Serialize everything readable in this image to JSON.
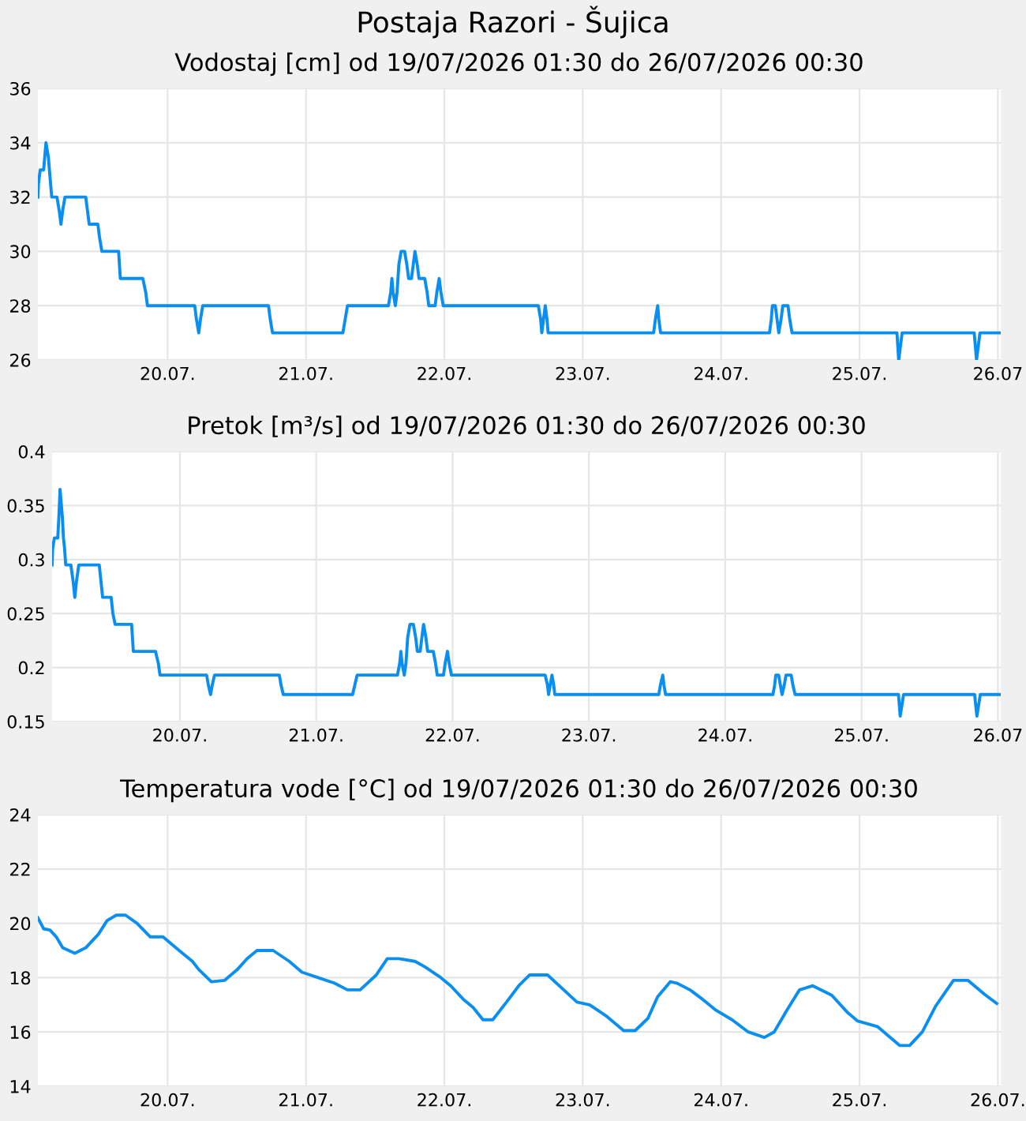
{
  "chart_data": [
    {
      "type": "line",
      "title": "Postaja Razori - Šujica",
      "subtitle": "Vodostaj [cm] od 19/07/2026 01:30 do 26/07/2026 00:30",
      "grid": true,
      "marker": "none",
      "line_style": "solid",
      "xlim": [
        "2026-07-19T01:30",
        "2026-07-26T00:30"
      ],
      "xticks": [
        {
          "value": "2026-07-20",
          "label": "20.07."
        },
        {
          "value": "2026-07-21",
          "label": "21.07."
        },
        {
          "value": "2026-07-22",
          "label": "22.07."
        },
        {
          "value": "2026-07-23",
          "label": "23.07."
        },
        {
          "value": "2026-07-24",
          "label": "24.07."
        },
        {
          "value": "2026-07-25",
          "label": "25.07."
        },
        {
          "value": "2026-07-26",
          "label": "26.07"
        }
      ],
      "ylim": [
        26,
        36
      ],
      "yticks": [
        26,
        28,
        30,
        32,
        34,
        36
      ],
      "series": [
        {
          "color": "#0a8ff0",
          "x": [
            "2026-07-19T01:30",
            "2026-07-19T01:36",
            "2026-07-19T01:54",
            "2026-07-19T02:30",
            "2026-07-19T02:42",
            "2026-07-19T02:54",
            "2026-07-19T03:18",
            "2026-07-19T03:30",
            "2026-07-19T03:42",
            "2026-07-19T03:54",
            "2026-07-19T04:48",
            "2026-07-19T05:12",
            "2026-07-19T05:30",
            "2026-07-19T05:48",
            "2026-07-19T06:12",
            "2026-07-19T09:48",
            "2026-07-19T10:06",
            "2026-07-19T10:24",
            "2026-07-19T11:54",
            "2026-07-19T12:12",
            "2026-07-19T12:36",
            "2026-07-19T15:30",
            "2026-07-19T15:48",
            "2026-07-19T19:42",
            "2026-07-19T20:12",
            "2026-07-19T20:30",
            "2026-07-20T04:42",
            "2026-07-20T05:00",
            "2026-07-20T05:24",
            "2026-07-20T05:42",
            "2026-07-20T06:06",
            "2026-07-20T17:30",
            "2026-07-20T17:48",
            "2026-07-20T18:12",
            "2026-07-21T06:24",
            "2026-07-21T06:48",
            "2026-07-21T07:12",
            "2026-07-21T14:18",
            "2026-07-21T14:42",
            "2026-07-21T14:54",
            "2026-07-21T15:06",
            "2026-07-21T15:30",
            "2026-07-21T15:48",
            "2026-07-21T16:06",
            "2026-07-21T16:30",
            "2026-07-21T17:06",
            "2026-07-21T17:30",
            "2026-07-21T17:48",
            "2026-07-21T18:18",
            "2026-07-21T18:36",
            "2026-07-21T18:54",
            "2026-07-21T19:18",
            "2026-07-21T19:36",
            "2026-07-21T20:36",
            "2026-07-21T21:00",
            "2026-07-21T21:18",
            "2026-07-21T22:24",
            "2026-07-21T22:42",
            "2026-07-21T23:06",
            "2026-07-21T23:24",
            "2026-07-21T23:48",
            "2026-07-22T16:18",
            "2026-07-22T16:42",
            "2026-07-22T16:54",
            "2026-07-22T17:12",
            "2026-07-22T17:30",
            "2026-07-22T17:48",
            "2026-07-22T18:00",
            "2026-07-23T12:18",
            "2026-07-23T12:36",
            "2026-07-23T13:00",
            "2026-07-23T13:12",
            "2026-07-23T13:30",
            "2026-07-24T08:24",
            "2026-07-24T08:42",
            "2026-07-24T08:54",
            "2026-07-24T09:24",
            "2026-07-24T09:42",
            "2026-07-24T10:00",
            "2026-07-24T10:24",
            "2026-07-24T10:42",
            "2026-07-24T11:36",
            "2026-07-24T11:54",
            "2026-07-24T12:18",
            "2026-07-25T06:30",
            "2026-07-25T06:48",
            "2026-07-25T07:06",
            "2026-07-25T07:24",
            "2026-07-25T19:54",
            "2026-07-25T20:18",
            "2026-07-25T20:36",
            "2026-07-25T20:54",
            "2026-07-26T00:24"
          ],
          "values": [
            32,
            32.5,
            33,
            33,
            33.5,
            34,
            33.5,
            33,
            32.5,
            32,
            32,
            31.5,
            31,
            31.5,
            32,
            32,
            31.5,
            31,
            31,
            30.5,
            30,
            30,
            29,
            29,
            28.5,
            28,
            28,
            27.5,
            27,
            27.5,
            28,
            28,
            27.5,
            27,
            27,
            27.5,
            28,
            28,
            28.5,
            29,
            28.5,
            28,
            28.5,
            29.5,
            30,
            30,
            29.5,
            29,
            29,
            29.5,
            30,
            29.5,
            29,
            29,
            28.5,
            28,
            28,
            28.5,
            29,
            28.5,
            28,
            28,
            27.5,
            27,
            27.5,
            28,
            27.5,
            27,
            27,
            27.5,
            28,
            27.5,
            27,
            27,
            27.5,
            28,
            28,
            27.5,
            27,
            27.5,
            28,
            28,
            27.5,
            27,
            27,
            26,
            26.5,
            27,
            27,
            26,
            26.5,
            27,
            27
          ]
        }
      ]
    },
    {
      "type": "line",
      "title": "Pretok [m³/s] od 19/07/2026 01:30 do 26/07/2026 00:30",
      "grid": true,
      "marker": "none",
      "line_style": "solid",
      "xlim": [
        "2026-07-19T01:30",
        "2026-07-26T00:30"
      ],
      "xticks": [
        {
          "value": "2026-07-20",
          "label": "20.07."
        },
        {
          "value": "2026-07-21",
          "label": "21.07."
        },
        {
          "value": "2026-07-22",
          "label": "22.07."
        },
        {
          "value": "2026-07-23",
          "label": "23.07."
        },
        {
          "value": "2026-07-24",
          "label": "24.07."
        },
        {
          "value": "2026-07-25",
          "label": "25.07."
        },
        {
          "value": "2026-07-26",
          "label": "26.07"
        }
      ],
      "ylim": [
        0.15,
        0.4
      ],
      "yticks": [
        0.15,
        0.2,
        0.25,
        0.3,
        0.35,
        0.4
      ],
      "series": [
        {
          "color": "#0a8ff0",
          "x": [
            "2026-07-19T01:30",
            "2026-07-19T01:36",
            "2026-07-19T01:54",
            "2026-07-19T02:30",
            "2026-07-19T02:42",
            "2026-07-19T02:54",
            "2026-07-19T03:18",
            "2026-07-19T03:30",
            "2026-07-19T03:42",
            "2026-07-19T03:54",
            "2026-07-19T04:48",
            "2026-07-19T05:12",
            "2026-07-19T05:30",
            "2026-07-19T05:48",
            "2026-07-19T06:12",
            "2026-07-19T09:48",
            "2026-07-19T10:06",
            "2026-07-19T10:24",
            "2026-07-19T11:54",
            "2026-07-19T12:12",
            "2026-07-19T12:36",
            "2026-07-19T15:30",
            "2026-07-19T15:48",
            "2026-07-19T19:42",
            "2026-07-19T20:12",
            "2026-07-19T20:30",
            "2026-07-20T04:42",
            "2026-07-20T05:00",
            "2026-07-20T05:24",
            "2026-07-20T05:42",
            "2026-07-20T06:06",
            "2026-07-20T17:30",
            "2026-07-20T17:48",
            "2026-07-20T18:12",
            "2026-07-21T06:24",
            "2026-07-21T06:48",
            "2026-07-21T07:12",
            "2026-07-21T14:18",
            "2026-07-21T14:42",
            "2026-07-21T14:54",
            "2026-07-21T15:06",
            "2026-07-21T15:30",
            "2026-07-21T15:48",
            "2026-07-21T16:06",
            "2026-07-21T16:30",
            "2026-07-21T17:06",
            "2026-07-21T17:30",
            "2026-07-21T17:48",
            "2026-07-21T18:18",
            "2026-07-21T18:36",
            "2026-07-21T18:54",
            "2026-07-21T19:18",
            "2026-07-21T19:36",
            "2026-07-21T20:36",
            "2026-07-21T21:00",
            "2026-07-21T21:18",
            "2026-07-21T22:24",
            "2026-07-21T22:42",
            "2026-07-21T23:06",
            "2026-07-21T23:24",
            "2026-07-21T23:48",
            "2026-07-22T16:18",
            "2026-07-22T16:42",
            "2026-07-22T16:54",
            "2026-07-22T17:12",
            "2026-07-22T17:30",
            "2026-07-22T17:48",
            "2026-07-22T18:00",
            "2026-07-23T12:18",
            "2026-07-23T12:36",
            "2026-07-23T13:00",
            "2026-07-23T13:12",
            "2026-07-23T13:30",
            "2026-07-24T08:24",
            "2026-07-24T08:42",
            "2026-07-24T08:54",
            "2026-07-24T09:24",
            "2026-07-24T09:42",
            "2026-07-24T10:00",
            "2026-07-24T10:24",
            "2026-07-24T10:42",
            "2026-07-24T11:36",
            "2026-07-24T11:54",
            "2026-07-24T12:18",
            "2026-07-25T06:30",
            "2026-07-25T06:48",
            "2026-07-25T07:06",
            "2026-07-25T07:24",
            "2026-07-25T19:54",
            "2026-07-25T20:18",
            "2026-07-25T20:36",
            "2026-07-25T20:54",
            "2026-07-26T00:24"
          ],
          "values": [
            0.295,
            0.31,
            0.32,
            0.32,
            0.34,
            0.365,
            0.34,
            0.32,
            0.31,
            0.295,
            0.295,
            0.28,
            0.265,
            0.28,
            0.295,
            0.295,
            0.28,
            0.265,
            0.265,
            0.25,
            0.24,
            0.24,
            0.215,
            0.215,
            0.204,
            0.193,
            0.193,
            0.184,
            0.175,
            0.184,
            0.193,
            0.193,
            0.184,
            0.175,
            0.175,
            0.184,
            0.193,
            0.193,
            0.204,
            0.215,
            0.204,
            0.193,
            0.204,
            0.228,
            0.24,
            0.24,
            0.228,
            0.215,
            0.215,
            0.228,
            0.24,
            0.228,
            0.215,
            0.215,
            0.204,
            0.193,
            0.193,
            0.204,
            0.215,
            0.204,
            0.193,
            0.193,
            0.184,
            0.175,
            0.184,
            0.193,
            0.184,
            0.175,
            0.175,
            0.184,
            0.193,
            0.184,
            0.175,
            0.175,
            0.184,
            0.193,
            0.193,
            0.184,
            0.175,
            0.184,
            0.193,
            0.193,
            0.184,
            0.175,
            0.175,
            0.155,
            0.165,
            0.175,
            0.175,
            0.155,
            0.165,
            0.175,
            0.175
          ]
        }
      ]
    },
    {
      "type": "line",
      "title": "Temperatura vode [°C] od 19/07/2026 01:30 do 26/07/2026 00:30",
      "grid": true,
      "marker": "none",
      "line_style": "solid",
      "xlim": [
        "2026-07-19T01:30",
        "2026-07-26T00:30"
      ],
      "xticks": [
        {
          "value": "2026-07-20",
          "label": "20.07."
        },
        {
          "value": "2026-07-21",
          "label": "21.07."
        },
        {
          "value": "2026-07-22",
          "label": "22.07."
        },
        {
          "value": "2026-07-23",
          "label": "23.07."
        },
        {
          "value": "2026-07-24",
          "label": "24.07."
        },
        {
          "value": "2026-07-25",
          "label": "25.07."
        },
        {
          "value": "2026-07-26",
          "label": "26.07."
        }
      ],
      "ylim": [
        14,
        24
      ],
      "yticks": [
        14,
        16,
        18,
        20,
        22,
        24
      ],
      "series": [
        {
          "color": "#0a8ff0",
          "x": [
            "2026-07-19T01:30",
            "2026-07-19T02:30",
            "2026-07-19T03:36",
            "2026-07-19T04:42",
            "2026-07-19T05:48",
            "2026-07-19T07:54",
            "2026-07-19T09:48",
            "2026-07-19T12:00",
            "2026-07-19T13:30",
            "2026-07-19T15:06",
            "2026-07-19T16:42",
            "2026-07-19T18:42",
            "2026-07-19T21:00",
            "2026-07-19T23:12",
            "2026-07-20T02:00",
            "2026-07-20T04:18",
            "2026-07-20T05:24",
            "2026-07-20T07:36",
            "2026-07-20T09:54",
            "2026-07-20T12:06",
            "2026-07-20T13:48",
            "2026-07-20T15:30",
            "2026-07-20T18:18",
            "2026-07-20T21:06",
            "2026-07-20T23:18",
            "2026-07-21T02:06",
            "2026-07-21T04:54",
            "2026-07-21T07:12",
            "2026-07-21T09:24",
            "2026-07-21T12:12",
            "2026-07-21T14:06",
            "2026-07-21T16:06",
            "2026-07-21T18:54",
            "2026-07-21T20:36",
            "2026-07-21T23:24",
            "2026-07-22T01:06",
            "2026-07-22T03:18",
            "2026-07-22T05:00",
            "2026-07-22T06:42",
            "2026-07-22T08:24",
            "2026-07-22T10:36",
            "2026-07-22T12:54",
            "2026-07-22T14:48",
            "2026-07-22T17:54",
            "2026-07-22T20:42",
            "2026-07-22T23:00",
            "2026-07-23T01:12",
            "2026-07-23T04:00",
            "2026-07-23T07:06",
            "2026-07-23T09:06",
            "2026-07-23T11:18",
            "2026-07-23T13:00",
            "2026-07-23T15:12",
            "2026-07-23T16:18",
            "2026-07-23T18:36",
            "2026-07-23T20:48",
            "2026-07-23T23:06",
            "2026-07-24T01:54",
            "2026-07-24T04:42",
            "2026-07-24T07:30",
            "2026-07-24T09:12",
            "2026-07-24T11:24",
            "2026-07-24T13:36",
            "2026-07-24T15:54",
            "2026-07-24T19:12",
            "2026-07-24T22:00",
            "2026-07-24T23:42",
            "2026-07-25T03:06",
            "2026-07-25T07:00",
            "2026-07-25T08:42",
            "2026-07-25T10:54",
            "2026-07-25T13:12",
            "2026-07-25T16:18",
            "2026-07-25T18:48",
            "2026-07-25T21:36",
            "2026-07-25T23:48"
          ],
          "values": [
            20.2,
            19.8,
            19.75,
            19.5,
            19.1,
            18.9,
            19.1,
            19.6,
            20.1,
            20.3,
            20.3,
            20.0,
            19.5,
            19.5,
            19.0,
            18.6,
            18.3,
            17.85,
            17.9,
            18.3,
            18.7,
            19.0,
            19.0,
            18.6,
            18.2,
            18.0,
            17.8,
            17.55,
            17.55,
            18.1,
            18.7,
            18.7,
            18.6,
            18.4,
            18.0,
            17.7,
            17.2,
            16.9,
            16.45,
            16.45,
            17.05,
            17.7,
            18.1,
            18.1,
            17.55,
            17.1,
            17.0,
            16.6,
            16.05,
            16.05,
            16.5,
            17.3,
            17.85,
            17.8,
            17.55,
            17.2,
            16.8,
            16.45,
            16.0,
            15.8,
            16.0,
            16.8,
            17.55,
            17.7,
            17.35,
            16.7,
            16.4,
            16.2,
            15.5,
            15.5,
            16.0,
            16.95,
            17.9,
            17.9,
            17.4,
            17.05
          ]
        }
      ]
    }
  ]
}
